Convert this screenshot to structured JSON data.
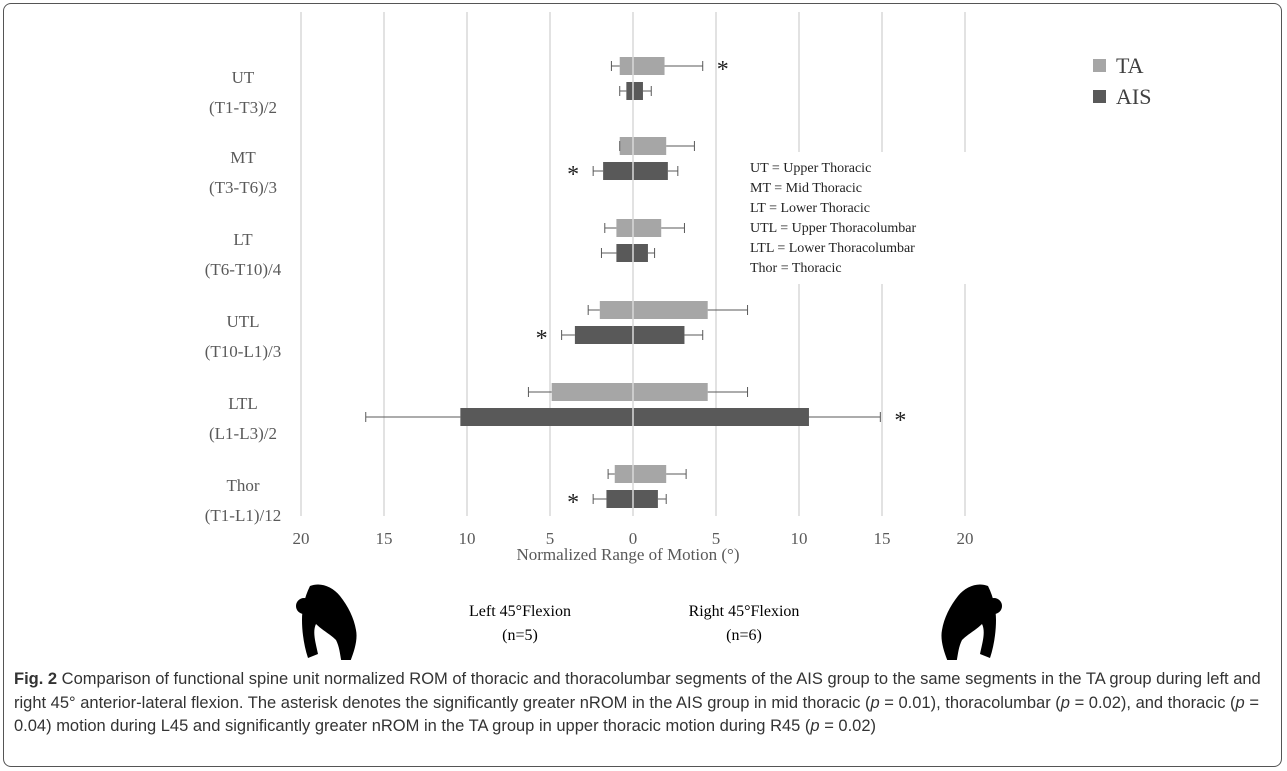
{
  "chart_data": {
    "type": "bar",
    "orientation": "horizontal",
    "xlabel": "Normalized Range of Motion (°)",
    "x_ticks": [
      "20",
      "15",
      "10",
      "5",
      "0",
      "5",
      "10",
      "15",
      "20"
    ],
    "xlim": [
      -20,
      20
    ],
    "grid": true,
    "legend_position": "top-right",
    "categories": [
      {
        "label": "UT",
        "sublabel": "(T1-T3)/2"
      },
      {
        "label": "MT",
        "sublabel": "(T3-T6)/3"
      },
      {
        "label": "LT",
        "sublabel": "(T6-T10)/4"
      },
      {
        "label": "UTL",
        "sublabel": "(T10-L1)/3"
      },
      {
        "label": "LTL",
        "sublabel": "(L1-L3)/2"
      },
      {
        "label": "Thor",
        "sublabel": "(T1-L1)/12"
      }
    ],
    "series": [
      {
        "name": "TA",
        "color": "#a6a6a6",
        "left": [
          0.8,
          0.8,
          1.0,
          2.0,
          4.9,
          1.1
        ],
        "right": [
          1.9,
          2.0,
          1.7,
          4.5,
          4.5,
          2.0
        ],
        "left_err": [
          1.3,
          0.8,
          1.7,
          2.7,
          6.3,
          1.5
        ],
        "right_err": [
          4.2,
          3.7,
          3.1,
          6.9,
          6.9,
          3.2
        ]
      },
      {
        "name": "AIS",
        "color": "#595959",
        "left": [
          0.4,
          1.8,
          1.0,
          3.5,
          10.4,
          1.6
        ],
        "right": [
          0.6,
          2.1,
          0.9,
          3.1,
          10.6,
          1.5
        ],
        "left_err": [
          0.8,
          2.4,
          1.9,
          4.3,
          16.1,
          2.4
        ],
        "right_err": [
          1.1,
          2.7,
          1.3,
          4.2,
          14.9,
          2.0
        ]
      }
    ],
    "asterisks": [
      {
        "category": 0,
        "series": "TA",
        "side": "right"
      },
      {
        "category": 1,
        "series": "AIS",
        "side": "left"
      },
      {
        "category": 3,
        "series": "AIS",
        "side": "left"
      },
      {
        "category": 4,
        "series": "AIS",
        "side": "right"
      },
      {
        "category": 5,
        "series": "AIS",
        "side": "left"
      }
    ],
    "asterisk_symbol": "*",
    "annotation_lines": [
      "UT = Upper Thoracic",
      "MT = Mid Thoracic",
      "LT = Lower Thoracic",
      "UTL = Upper Thoracolumbar",
      "LTL = Lower Thoracolumbar",
      "Thor = Thoracic"
    ],
    "bottom_labels": {
      "left_title": "Left 45°Flexion",
      "left_n": "(n=5)",
      "right_title": "Right 45°Flexion",
      "right_n": "(n=6)"
    }
  },
  "caption": {
    "label": "Fig. 2",
    "part1": " Comparison of functional spine unit normalized ROM of thoracic and thoracolumbar segments of the AIS group to the same segments in the TA group during left and right 45° anterior-lateral flexion. The asterisk denotes the significantly greater nROM in the AIS group in mid thoracic (",
    "p1": "p",
    "part2": " = 0.01), thoracolumbar (",
    "p2": "p",
    "part3": " = 0.02), and thoracic (",
    "p3": "p",
    "part4": " = 0.04) motion during L45 and significantly greater nROM in the TA group in upper thoracic motion during R45 (",
    "p4": "p",
    "part5": " = 0.02)"
  }
}
